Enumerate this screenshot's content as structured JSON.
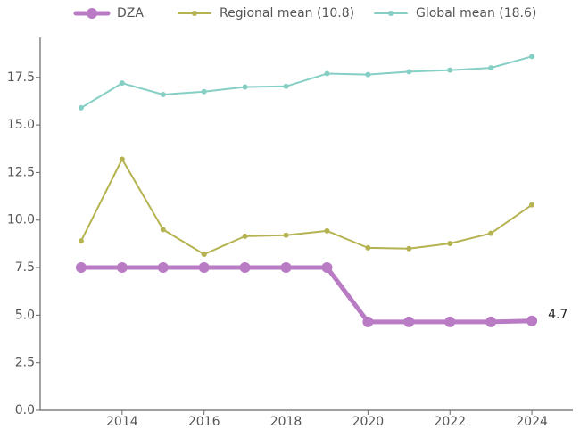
{
  "chart_data": {
    "type": "line",
    "x": [
      2013,
      2014,
      2015,
      2016,
      2017,
      2018,
      2019,
      2020,
      2021,
      2022,
      2023,
      2024
    ],
    "series": [
      {
        "name": "DZA",
        "color": "#b87bc4",
        "values": [
          7.5,
          7.5,
          7.5,
          7.5,
          7.5,
          7.5,
          7.5,
          4.65,
          4.65,
          4.65,
          4.65,
          4.7
        ],
        "value_labels": [
          null,
          null,
          null,
          null,
          null,
          null,
          null,
          null,
          null,
          null,
          null,
          "4.7"
        ]
      },
      {
        "name": "Regional mean (10.8)",
        "color": "#b5b351",
        "values": [
          8.9,
          13.2,
          9.5,
          8.2,
          9.15,
          9.2,
          9.43,
          8.54,
          8.5,
          8.77,
          9.3,
          10.8
        ]
      },
      {
        "name": "Global mean (18.6)",
        "color": "#85cfc4",
        "values": [
          15.9,
          17.2,
          16.6,
          16.75,
          17.0,
          17.03,
          17.7,
          17.65,
          17.8,
          17.88,
          18.0,
          18.6
        ]
      }
    ],
    "xlim": [
      2012,
      2025
    ],
    "xticks": [
      2014,
      2016,
      2018,
      2020,
      2022,
      2024
    ],
    "ylim": [
      0,
      19.6
    ],
    "yticks": [
      {
        "value": 0,
        "label": "0.0"
      },
      2.5,
      {
        "value": 5,
        "label": "5.0"
      },
      7.5,
      {
        "value": 10,
        "label": "10.0"
      },
      12.5,
      {
        "value": 15,
        "label": "15.0"
      },
      17.5
    ],
    "grid": false,
    "legend": "top"
  }
}
